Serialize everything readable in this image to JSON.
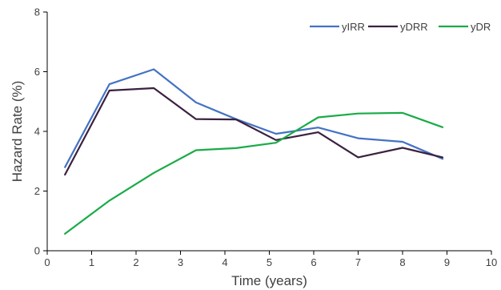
{
  "chart_data": {
    "type": "line",
    "xlabel": "Time (years)",
    "ylabel": "Hazard Rate (%)",
    "xlim": [
      0,
      10
    ],
    "ylim": [
      0,
      8
    ],
    "x_ticks": [
      0,
      1,
      2,
      3,
      4,
      5,
      6,
      7,
      8,
      9,
      10
    ],
    "y_ticks": [
      0,
      2,
      4,
      6,
      8
    ],
    "grid": false,
    "legend_position": "top-right",
    "x": [
      0.4,
      1.4,
      2.4,
      3.35,
      4.25,
      5.15,
      6.1,
      7.0,
      8.0,
      8.9
    ],
    "series": [
      {
        "name": "yIRR",
        "color": "#4472c4",
        "values": [
          2.8,
          5.58,
          6.08,
          4.97,
          4.41,
          3.92,
          4.13,
          3.77,
          3.65,
          3.08
        ]
      },
      {
        "name": "yDRR",
        "color": "#3b2140",
        "values": [
          2.55,
          5.37,
          5.45,
          4.41,
          4.4,
          3.71,
          3.97,
          3.13,
          3.45,
          3.13
        ]
      },
      {
        "name": "yDR",
        "color": "#1aab48",
        "values": [
          0.57,
          1.68,
          2.61,
          3.37,
          3.44,
          3.62,
          4.47,
          4.6,
          4.62,
          4.14
        ]
      }
    ]
  }
}
